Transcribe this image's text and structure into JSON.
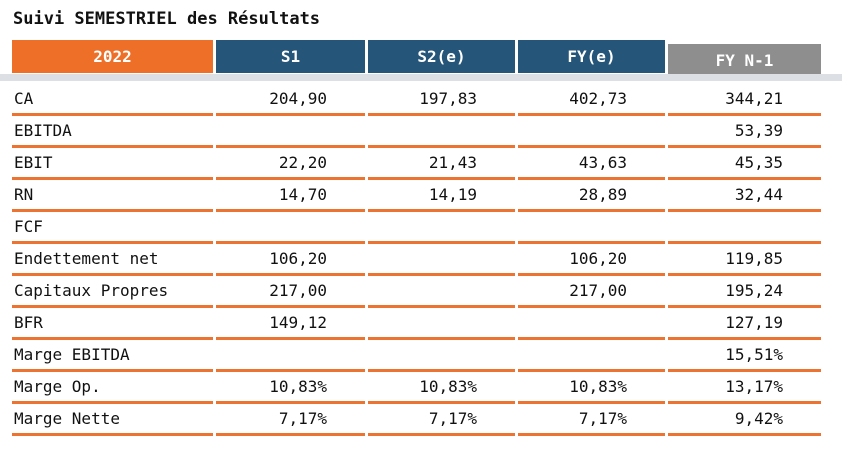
{
  "title": "Suivi SEMESTRIEL des Résultats",
  "colors": {
    "header_year_bg": "#ED6F28",
    "header_period_bg": "#255578",
    "header_prior_bg": "#8E8E8E",
    "row_separator": "#ED7330",
    "header_shadow": "#DCDFE3",
    "text": "#111111"
  },
  "table": {
    "columns": [
      {
        "label": "2022",
        "style": "year"
      },
      {
        "label": "S1",
        "style": "blue"
      },
      {
        "label": "S2(e)",
        "style": "blue"
      },
      {
        "label": "FY(e)",
        "style": "blue"
      },
      {
        "label": "FY N-1",
        "style": "gray"
      }
    ],
    "rows": [
      {
        "label": "CA",
        "values": [
          "204,90",
          "197,83",
          "402,73",
          "344,21"
        ]
      },
      {
        "label": "EBITDA",
        "values": [
          "",
          "",
          "",
          "53,39"
        ]
      },
      {
        "label": "EBIT",
        "values": [
          "22,20",
          "21,43",
          "43,63",
          "45,35"
        ]
      },
      {
        "label": "RN",
        "values": [
          "14,70",
          "14,19",
          "28,89",
          "32,44"
        ]
      },
      {
        "label": "FCF",
        "values": [
          "",
          "",
          "",
          ""
        ]
      },
      {
        "label": "Endettement net",
        "values": [
          "106,20",
          "",
          "106,20",
          "119,85"
        ]
      },
      {
        "label": "Capitaux Propres",
        "values": [
          "217,00",
          "",
          "217,00",
          "195,24"
        ]
      },
      {
        "label": "BFR",
        "values": [
          "149,12",
          "",
          "",
          "127,19"
        ]
      },
      {
        "label": "Marge EBITDA",
        "values": [
          "",
          "",
          "",
          "15,51%"
        ]
      },
      {
        "label": "Marge Op.",
        "values": [
          "10,83%",
          "10,83%",
          "10,83%",
          "13,17%"
        ]
      },
      {
        "label": "Marge Nette",
        "values": [
          "7,17%",
          "7,17%",
          "7,17%",
          "9,42%"
        ]
      }
    ]
  }
}
